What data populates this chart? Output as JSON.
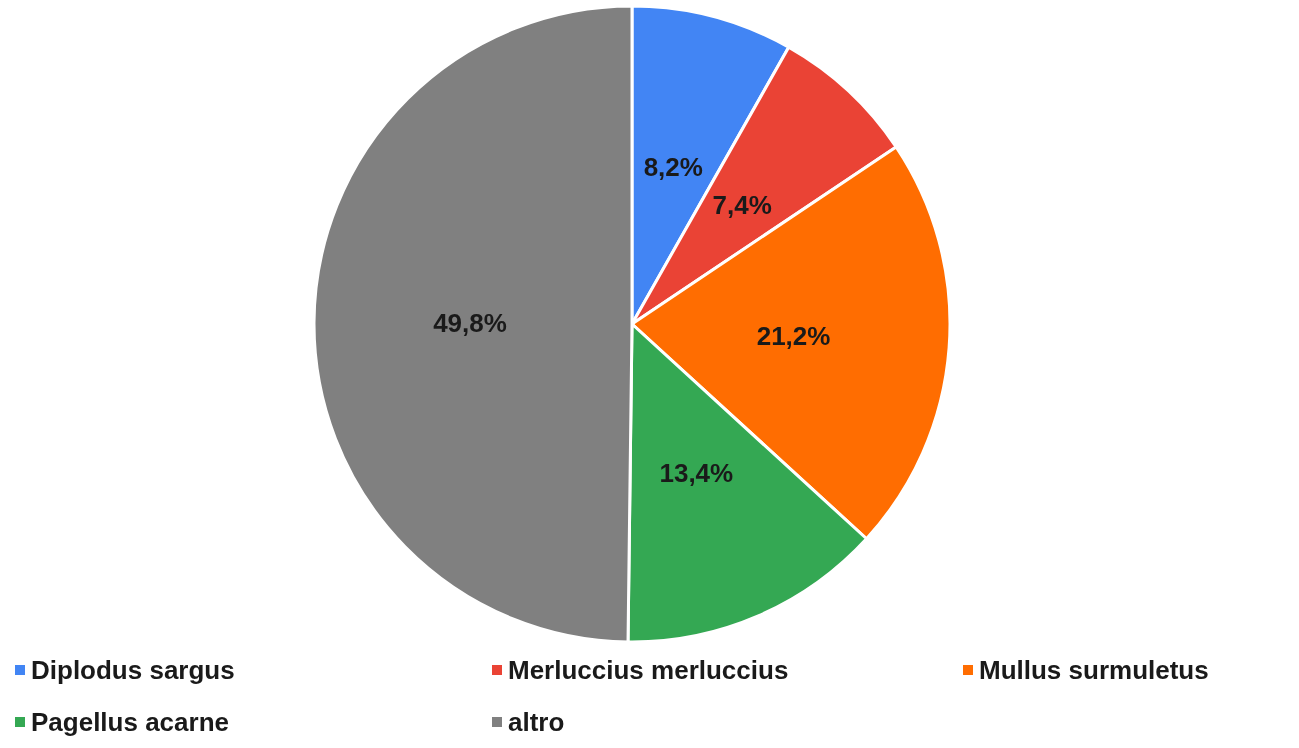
{
  "chart_data": {
    "type": "pie",
    "categories": [
      "Diplodus sargus",
      "Merluccius merluccius",
      "Mullus surmuletus",
      "Pagellus acarne",
      "altro"
    ],
    "values": [
      8.2,
      7.4,
      21.2,
      13.4,
      49.8
    ],
    "colors": [
      "#4285f4",
      "#ea4335",
      "#ff6d01",
      "#34a853",
      "#808080"
    ],
    "value_labels": [
      "8,2%",
      "7,4%",
      "21,2%",
      "13,4%",
      "49,8%"
    ],
    "legend": "bottom"
  }
}
